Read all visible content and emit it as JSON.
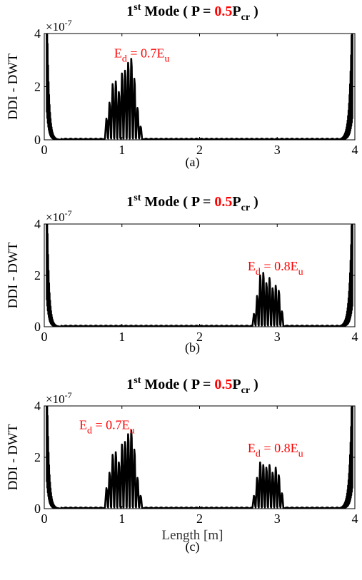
{
  "figure": {
    "xlabel": "Length [m]",
    "ylabel": "DDI - DWT",
    "exponent_base": "×10",
    "exponent_power": "-7"
  },
  "chart_data": [
    {
      "type": "line",
      "panel_label": "(a)",
      "title": {
        "mode": "1",
        "mode_sup": "st",
        "before": " Mode ( P = ",
        "value": "0.5",
        "after": "P",
        "after_sub": "cr",
        "close": " )"
      },
      "x_ticks": [
        "0",
        "1",
        "2",
        "3",
        "4"
      ],
      "y_ticks": [
        "0",
        "2",
        "4"
      ],
      "xlim": [
        0,
        4
      ],
      "ylim": [
        0,
        4
      ],
      "y_scale_exponent": -7,
      "annotations": [
        {
          "text": "E",
          "sub": "d",
          "mid": " = 0.7E",
          "sub2": "u",
          "x": 0.9,
          "y": 3.1
        }
      ],
      "series": [
        {
          "color": "#000000",
          "boundary_left_end": 0.22,
          "boundary_right_start": 3.78,
          "peaks": [
            {
              "x": 0.8,
              "y": 0.8
            },
            {
              "x": 0.84,
              "y": 1.4
            },
            {
              "x": 0.88,
              "y": 2.1
            },
            {
              "x": 0.92,
              "y": 2.2
            },
            {
              "x": 0.96,
              "y": 1.8
            },
            {
              "x": 1.0,
              "y": 2.5
            },
            {
              "x": 1.04,
              "y": 2.6
            },
            {
              "x": 1.08,
              "y": 2.9
            },
            {
              "x": 1.12,
              "y": 3.05
            },
            {
              "x": 1.16,
              "y": 2.3
            },
            {
              "x": 1.2,
              "y": 1.2
            },
            {
              "x": 1.24,
              "y": 0.5
            }
          ]
        }
      ]
    },
    {
      "type": "line",
      "panel_label": "(b)",
      "title": {
        "mode": "1",
        "mode_sup": "st",
        "before": " Mode ( P = ",
        "value": "0.5",
        "after": "P",
        "after_sub": "cr",
        "close": " )"
      },
      "x_ticks": [
        "0",
        "1",
        "2",
        "3",
        "4"
      ],
      "y_ticks": [
        "0",
        "2",
        "4"
      ],
      "xlim": [
        0,
        4
      ],
      "ylim": [
        0,
        4
      ],
      "y_scale_exponent": -7,
      "annotations": [
        {
          "text": "E",
          "sub": "d",
          "mid": " = 0.8E",
          "sub2": "u",
          "x": 2.62,
          "y": 2.2
        }
      ],
      "series": [
        {
          "color": "#000000",
          "boundary_left_end": 0.22,
          "boundary_right_start": 3.78,
          "peaks": [
            {
              "x": 2.7,
              "y": 0.5
            },
            {
              "x": 2.74,
              "y": 1.2
            },
            {
              "x": 2.78,
              "y": 2.0
            },
            {
              "x": 2.82,
              "y": 2.1
            },
            {
              "x": 2.86,
              "y": 1.7
            },
            {
              "x": 2.9,
              "y": 1.9
            },
            {
              "x": 2.94,
              "y": 1.5
            },
            {
              "x": 2.98,
              "y": 1.6
            },
            {
              "x": 3.02,
              "y": 1.4
            },
            {
              "x": 3.06,
              "y": 0.6
            }
          ]
        }
      ]
    },
    {
      "type": "line",
      "panel_label": "(c)",
      "title": {
        "mode": "1",
        "mode_sup": "st",
        "before": " Mode ( P = ",
        "value": "0.5",
        "after": "P",
        "after_sub": "cr",
        "close": " )"
      },
      "x_ticks": [
        "0",
        "1",
        "2",
        "3",
        "4"
      ],
      "y_ticks": [
        "0",
        "2",
        "4"
      ],
      "xlim": [
        0,
        4
      ],
      "ylim": [
        0,
        4
      ],
      "y_scale_exponent": -7,
      "annotations": [
        {
          "text": "E",
          "sub": "d",
          "mid": " = 0.7E",
          "sub2": "u",
          "x": 0.45,
          "y": 3.1
        },
        {
          "text": "E",
          "sub": "d",
          "mid": " = 0.8E",
          "sub2": "u",
          "x": 2.62,
          "y": 2.2
        }
      ],
      "series": [
        {
          "color": "#000000",
          "boundary_left_end": 0.22,
          "boundary_right_start": 3.78,
          "peaks": [
            {
              "x": 0.8,
              "y": 0.8
            },
            {
              "x": 0.84,
              "y": 1.4
            },
            {
              "x": 0.88,
              "y": 2.1
            },
            {
              "x": 0.92,
              "y": 2.2
            },
            {
              "x": 0.96,
              "y": 1.8
            },
            {
              "x": 1.0,
              "y": 2.5
            },
            {
              "x": 1.04,
              "y": 2.6
            },
            {
              "x": 1.08,
              "y": 2.9
            },
            {
              "x": 1.12,
              "y": 3.05
            },
            {
              "x": 1.16,
              "y": 2.3
            },
            {
              "x": 1.2,
              "y": 1.2
            },
            {
              "x": 1.24,
              "y": 0.5
            },
            {
              "x": 2.7,
              "y": 0.5
            },
            {
              "x": 2.74,
              "y": 1.2
            },
            {
              "x": 2.78,
              "y": 1.8
            },
            {
              "x": 2.82,
              "y": 1.7
            },
            {
              "x": 2.86,
              "y": 1.6
            },
            {
              "x": 2.9,
              "y": 1.7
            },
            {
              "x": 2.94,
              "y": 1.4
            },
            {
              "x": 2.98,
              "y": 1.6
            },
            {
              "x": 3.02,
              "y": 1.3
            },
            {
              "x": 3.06,
              "y": 0.6
            }
          ]
        }
      ]
    }
  ],
  "colors": {
    "axis": "#000000",
    "highlight": "#ff0000",
    "annotation": "#ff0000",
    "line": "#000000"
  }
}
